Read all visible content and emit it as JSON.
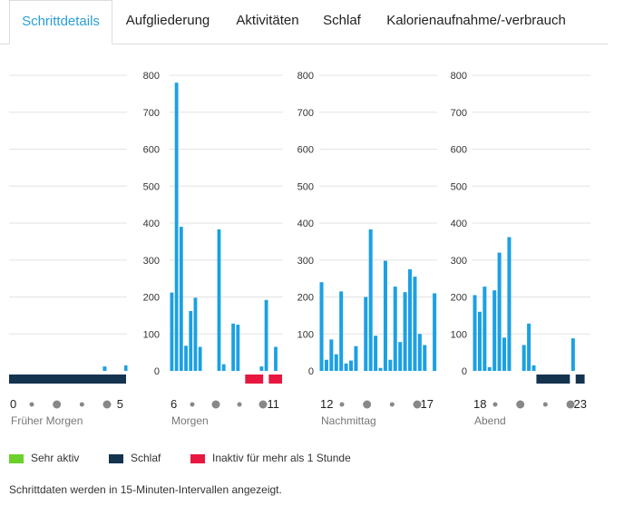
{
  "tabs": [
    {
      "label": "Schrittdetails",
      "active": true
    },
    {
      "label": "Aufgliederung",
      "active": false
    },
    {
      "label": "Aktivitäten",
      "active": false
    },
    {
      "label": "Schlaf",
      "active": false
    },
    {
      "label": "Kalorienaufnahme/-verbrauch",
      "active": false
    }
  ],
  "legend": [
    {
      "label": "Sehr aktiv",
      "color": "#6bd12a"
    },
    {
      "label": "Schlaf",
      "color": "#14334f"
    },
    {
      "label": "Inaktiv für mehr als 1 Stunde",
      "color": "#e8173f"
    }
  ],
  "footer": "Schrittdaten werden in 15-Minuten-Intervallen angezeigt.",
  "colors": {
    "bar": "#1ca0e3",
    "sleep": "#14334f",
    "inactive": "#e8173f",
    "grid": "#e3e3e3",
    "dot": "#888888"
  },
  "chart_data": {
    "type": "bar",
    "ylim": [
      0,
      800
    ],
    "yticks": [
      0,
      100,
      200,
      300,
      400,
      500,
      600,
      700,
      800
    ],
    "interval_minutes": 15,
    "panels": [
      {
        "name": "Früher Morgen",
        "start_label": "0",
        "end_label": "5",
        "values": [
          0,
          0,
          0,
          0,
          0,
          0,
          0,
          0,
          0,
          0,
          0,
          0,
          0,
          0,
          0,
          0,
          0,
          0,
          0,
          12,
          0,
          0,
          0,
          0
        ],
        "extra_tail_value": 15,
        "extra_tail_index": 5,
        "sleep": [
          [
            0,
            24
          ]
        ],
        "inactive": []
      },
      {
        "name": "Morgen",
        "start_label": "6",
        "end_label": "11",
        "values": [
          212,
          780,
          390,
          68,
          162,
          198,
          65,
          0,
          0,
          0,
          383,
          18,
          0,
          128,
          125,
          0,
          0,
          0,
          0,
          12,
          192,
          0,
          65,
          0
        ],
        "sleep": [],
        "inactive": [
          [
            16,
            20
          ],
          [
            21,
            24
          ]
        ]
      },
      {
        "name": "Nachmittag",
        "start_label": "12",
        "end_label": "17",
        "values": [
          240,
          30,
          85,
          45,
          215,
          20,
          28,
          67,
          0,
          200,
          383,
          95,
          8,
          298,
          30,
          228,
          78,
          213,
          275,
          255,
          100,
          70,
          0,
          210
        ],
        "sleep": [],
        "inactive": []
      },
      {
        "name": "Abend",
        "start_label": "18",
        "end_label": "23",
        "values": [
          205,
          160,
          228,
          10,
          218,
          320,
          90,
          362,
          0,
          0,
          70,
          128,
          15,
          0,
          0,
          0,
          0,
          0,
          0,
          0,
          88,
          0,
          0,
          0
        ],
        "sleep": [
          [
            13,
            20
          ],
          [
            21,
            23
          ]
        ],
        "inactive": []
      }
    ]
  }
}
